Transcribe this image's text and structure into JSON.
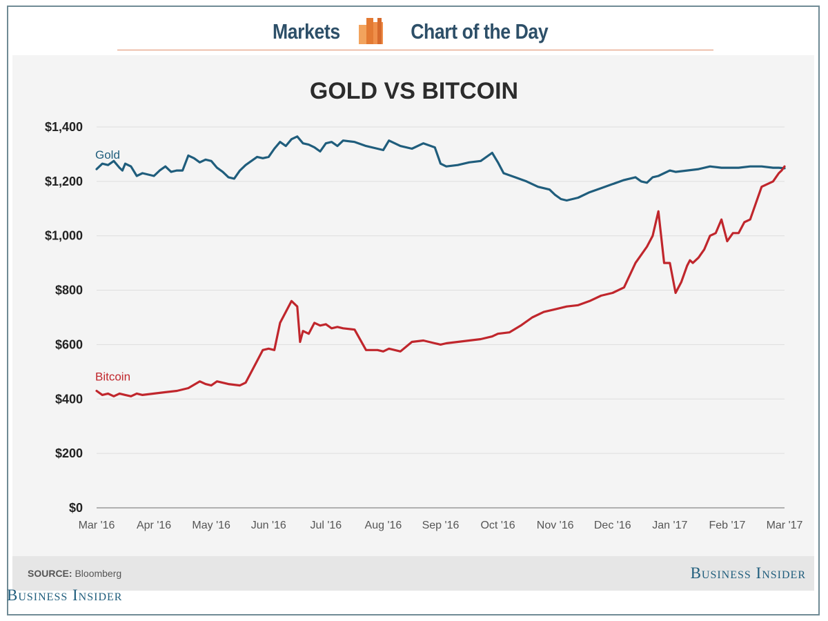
{
  "header": {
    "left_word": "Markets",
    "right_word": "Chart of the Day",
    "icon": "bar-chart-icon"
  },
  "footer": {
    "source_label": "SOURCE:",
    "source_value": "Bloomberg",
    "brand": "Business Insider",
    "brand_bottom": "Business Insider"
  },
  "colors": {
    "gold": "#1f5d7c",
    "bitcoin": "#c0262c",
    "grid": "#dddddd",
    "panel": "#f4f4f4",
    "header_text": "#2d4f68"
  },
  "chart_data": {
    "type": "line",
    "title": "GOLD VS BITCOIN",
    "xlabel": "",
    "ylabel": "",
    "ylim": [
      0,
      1400
    ],
    "xlim": [
      0,
      12
    ],
    "y_ticks": [
      0,
      200,
      400,
      600,
      800,
      1000,
      1200,
      1400
    ],
    "y_tick_labels": [
      "$0",
      "$200",
      "$400",
      "$600",
      "$800",
      "$1,000",
      "$1,200",
      "$1,400"
    ],
    "x_ticks": [
      0,
      1,
      2,
      3,
      4,
      5,
      6,
      7,
      8,
      9,
      10,
      11,
      12
    ],
    "x_tick_labels": [
      "Mar '16",
      "Apr '16",
      "May '16",
      "Jun '16",
      "Jul '16",
      "Aug '16",
      "Sep '16",
      "Oct '16",
      "Nov '16",
      "Dec '16",
      "Jan '17",
      "Feb '17",
      "Mar '17"
    ],
    "grid": true,
    "series": [
      {
        "name": "Gold",
        "label": "Gold",
        "x": [
          0,
          0.1,
          0.2,
          0.3,
          0.4,
          0.45,
          0.5,
          0.6,
          0.7,
          0.8,
          0.9,
          1.0,
          1.1,
          1.2,
          1.3,
          1.4,
          1.5,
          1.6,
          1.7,
          1.8,
          1.9,
          2.0,
          2.1,
          2.2,
          2.3,
          2.4,
          2.5,
          2.6,
          2.7,
          2.8,
          2.9,
          3.0,
          3.1,
          3.2,
          3.3,
          3.4,
          3.5,
          3.6,
          3.7,
          3.8,
          3.9,
          4.0,
          4.1,
          4.2,
          4.3,
          4.5,
          4.7,
          4.9,
          5.0,
          5.1,
          5.3,
          5.5,
          5.7,
          5.9,
          6.0,
          6.1,
          6.3,
          6.5,
          6.7,
          6.9,
          7.0,
          7.1,
          7.3,
          7.5,
          7.7,
          7.9,
          8.0,
          8.1,
          8.2,
          8.3,
          8.4,
          8.6,
          8.8,
          9.0,
          9.2,
          9.4,
          9.5,
          9.6,
          9.7,
          9.8,
          9.9,
          10.0,
          10.1,
          10.3,
          10.5,
          10.7,
          10.9,
          11.0,
          11.2,
          11.4,
          11.6,
          11.8,
          11.9,
          12.0
        ],
        "y": [
          1245,
          1265,
          1260,
          1275,
          1250,
          1240,
          1265,
          1255,
          1220,
          1230,
          1225,
          1220,
          1240,
          1255,
          1235,
          1240,
          1240,
          1295,
          1285,
          1270,
          1280,
          1275,
          1250,
          1235,
          1215,
          1210,
          1240,
          1260,
          1275,
          1290,
          1285,
          1290,
          1320,
          1345,
          1330,
          1355,
          1365,
          1340,
          1335,
          1325,
          1310,
          1340,
          1345,
          1330,
          1350,
          1345,
          1330,
          1320,
          1315,
          1350,
          1330,
          1320,
          1340,
          1325,
          1265,
          1255,
          1260,
          1270,
          1275,
          1305,
          1270,
          1230,
          1215,
          1200,
          1180,
          1170,
          1150,
          1135,
          1130,
          1135,
          1140,
          1160,
          1175,
          1190,
          1205,
          1215,
          1200,
          1195,
          1215,
          1220,
          1230,
          1240,
          1235,
          1240,
          1245,
          1255,
          1250,
          1250,
          1250,
          1255,
          1255,
          1250,
          1250,
          1248
        ]
      },
      {
        "name": "Bitcoin",
        "label": "Bitcoin",
        "x": [
          0,
          0.1,
          0.2,
          0.3,
          0.4,
          0.5,
          0.6,
          0.7,
          0.8,
          1.0,
          1.2,
          1.4,
          1.6,
          1.8,
          1.9,
          2.0,
          2.1,
          2.3,
          2.5,
          2.6,
          2.8,
          2.9,
          3.0,
          3.1,
          3.2,
          3.4,
          3.5,
          3.55,
          3.6,
          3.7,
          3.8,
          3.9,
          4.0,
          4.1,
          4.2,
          4.3,
          4.5,
          4.7,
          4.9,
          5.0,
          5.1,
          5.3,
          5.5,
          5.7,
          5.9,
          6.0,
          6.1,
          6.3,
          6.5,
          6.7,
          6.9,
          7.0,
          7.2,
          7.4,
          7.6,
          7.8,
          8.0,
          8.2,
          8.4,
          8.6,
          8.8,
          9.0,
          9.2,
          9.4,
          9.5,
          9.6,
          9.7,
          9.8,
          9.9,
          10.0,
          10.1,
          10.2,
          10.3,
          10.35,
          10.4,
          10.5,
          10.6,
          10.7,
          10.8,
          10.9,
          11.0,
          11.1,
          11.2,
          11.3,
          11.4,
          11.5,
          11.6,
          11.7,
          11.8,
          11.9,
          11.95,
          12.0
        ],
        "y": [
          430,
          415,
          420,
          410,
          420,
          415,
          410,
          420,
          415,
          420,
          425,
          430,
          440,
          465,
          455,
          450,
          465,
          455,
          450,
          460,
          540,
          580,
          585,
          580,
          680,
          760,
          740,
          610,
          650,
          640,
          680,
          670,
          675,
          660,
          665,
          660,
          655,
          580,
          580,
          575,
          585,
          575,
          610,
          615,
          605,
          600,
          605,
          610,
          615,
          620,
          630,
          640,
          645,
          670,
          700,
          720,
          730,
          740,
          745,
          760,
          780,
          790,
          810,
          900,
          930,
          960,
          1000,
          1090,
          900,
          900,
          790,
          830,
          890,
          910,
          900,
          920,
          950,
          1000,
          1010,
          1060,
          980,
          1010,
          1010,
          1050,
          1060,
          1120,
          1180,
          1190,
          1200,
          1230,
          1240,
          1255
        ]
      }
    ]
  }
}
